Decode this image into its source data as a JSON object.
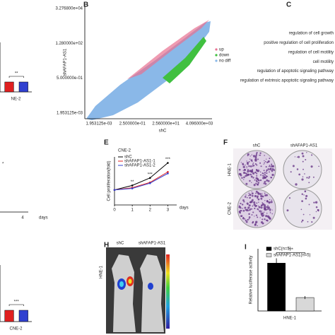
{
  "panel_labels": [
    "B",
    "C",
    "E",
    "F",
    "H",
    "I"
  ],
  "scatter": {
    "ylabel": "shAFAP1-AS1",
    "xlabel": "shC",
    "yticks": [
      "3.276800e+04",
      "1.280000e+02",
      "5.000000e-01",
      "1.953125e-03"
    ],
    "xticks": [
      "1.953125e-03",
      "2.500000e-01",
      "2.560000e+01",
      "4.096000e+03"
    ],
    "legend": [
      {
        "name": "up",
        "color": "#e87090"
      },
      {
        "name": "down",
        "color": "#40c040"
      },
      {
        "name": "no diff",
        "color": "#8ab8e8"
      }
    ]
  },
  "go_terms": [
    "regulation of cell growth",
    "positive regulation of cell proliferation",
    "regulation of cell motility",
    "cell motility",
    "regulation of apoptotic signaling pathway",
    "regulation of extrinsic apoptotic signaling pathway"
  ],
  "colony": {
    "columns": [
      "shC",
      "shAFAP1-AS1"
    ],
    "rows": [
      "HNE-1",
      "CNE-2"
    ]
  },
  "xenograft": {
    "columns": [
      "shC",
      "shAFAP1-AS1"
    ],
    "row": "HNE-1"
  },
  "partial_left": {
    "star": "*",
    "tick": 4,
    "xlabel": "days"
  },
  "chart_data": [
    {
      "type": "line",
      "title": "CNE-2",
      "ylabel": "Cell proliferation(fold)",
      "xlabel": "days",
      "x": [
        0,
        1,
        2,
        3
      ],
      "xlim": [
        0,
        3.5
      ],
      "xticks": [
        0,
        1,
        2,
        3
      ],
      "ylim": [
        0,
        3.2
      ],
      "annotations": [
        null,
        "**",
        "***",
        "***"
      ],
      "series": [
        {
          "name": "shC",
          "color": "#000000",
          "values": [
            1,
            1.3,
            1.8,
            2.8
          ]
        },
        {
          "name": "shAFAP1-AS1-1",
          "color": "#e02020",
          "values": [
            1,
            1.15,
            1.5,
            2.2
          ]
        },
        {
          "name": "shAFAP1-AS1-2",
          "color": "#3040d0",
          "values": [
            1,
            1.1,
            1.45,
            2.1
          ]
        }
      ]
    },
    {
      "type": "bar",
      "ylabel": "Relative luciferase activity",
      "categories": [
        "HNE-1"
      ],
      "ylim": [
        0,
        1.3
      ],
      "annotation": "***",
      "series": [
        {
          "name": "shC(n=5)",
          "color": "#000000",
          "values": [
            1.0
          ],
          "errors": [
            0.1
          ]
        },
        {
          "name": "shAFAP1-AS1(n=5)",
          "color": "#d8d8d8",
          "values": [
            0.28
          ],
          "errors": [
            0.03
          ]
        }
      ]
    },
    {
      "type": "bar",
      "categories": [
        "NE-2"
      ],
      "ylim": [
        0,
        1.5
      ],
      "annotation": "**",
      "series": [
        {
          "color": "#e02020",
          "values": [
            0.3
          ]
        },
        {
          "color": "#3040d0",
          "values": [
            0.3
          ]
        }
      ]
    },
    {
      "type": "bar",
      "categories": [
        "CNE-2"
      ],
      "ylim": [
        0,
        1.5
      ],
      "annotation": "***",
      "series": [
        {
          "color": "#e02020",
          "values": [
            0.3
          ]
        },
        {
          "color": "#3040d0",
          "values": [
            0.3
          ]
        }
      ]
    }
  ]
}
